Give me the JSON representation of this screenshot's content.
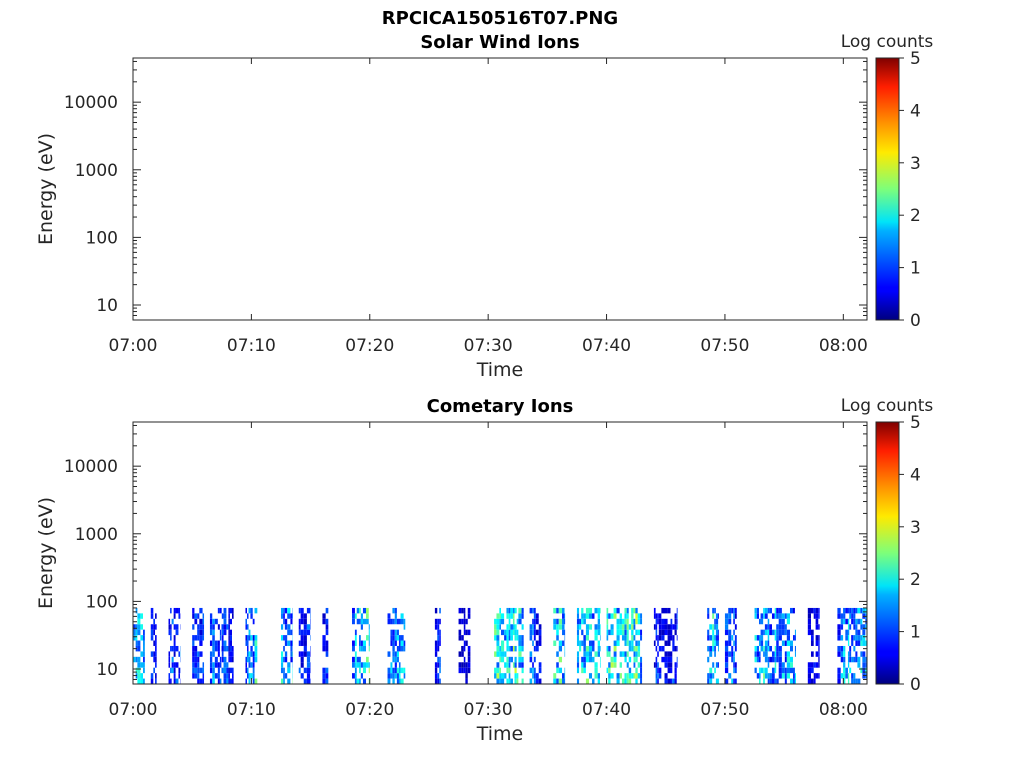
{
  "figure": {
    "main_title": "RPCICA150516T07.PNG"
  },
  "chart_data": [
    {
      "type": "heatmap",
      "title": "Solar Wind Ions",
      "xlabel": "Time",
      "ylabel": "Energy (eV)",
      "x_ticks": [
        "07:00",
        "07:10",
        "07:20",
        "07:30",
        "07:40",
        "07:50",
        "08:00"
      ],
      "x_range": [
        "07:00",
        "08:02"
      ],
      "y_scale": "log",
      "y_ticks": [
        10,
        100,
        1000,
        10000
      ],
      "y_range": [
        6,
        45000
      ],
      "colorbar": {
        "label": "Log counts",
        "range": [
          0,
          5
        ],
        "ticks": [
          0,
          1,
          2,
          3,
          4,
          5
        ],
        "colormap": "jet"
      },
      "grid": false,
      "cells": []
    },
    {
      "type": "heatmap",
      "title": "Cometary Ions",
      "xlabel": "Time",
      "ylabel": "Energy (eV)",
      "x_ticks": [
        "07:00",
        "07:10",
        "07:20",
        "07:30",
        "07:40",
        "07:50",
        "08:00"
      ],
      "x_range": [
        "07:00",
        "08:02"
      ],
      "y_scale": "log",
      "y_ticks": [
        10,
        100,
        1000,
        10000
      ],
      "y_range": [
        6,
        45000
      ],
      "colorbar": {
        "label": "Log counts",
        "range": [
          0,
          5
        ],
        "ticks": [
          0,
          1,
          2,
          3,
          4,
          5
        ],
        "colormap": "jet"
      },
      "grid": false,
      "energy_range_ev": [
        6,
        80
      ],
      "activity_bursts": [
        {
          "t_start": "07:00:00",
          "t_end": "07:01:00",
          "level": 2.0
        },
        {
          "t_start": "07:01:30",
          "t_end": "07:02:00",
          "level": 1.0
        },
        {
          "t_start": "07:03:00",
          "t_end": "07:04:00",
          "level": 1.2
        },
        {
          "t_start": "07:05:00",
          "t_end": "07:06:00",
          "level": 1.0
        },
        {
          "t_start": "07:06:30",
          "t_end": "07:07:30",
          "level": 1.3
        },
        {
          "t_start": "07:07:30",
          "t_end": "07:08:30",
          "level": 1.1
        },
        {
          "t_start": "07:09:30",
          "t_end": "07:10:30",
          "level": 1.8
        },
        {
          "t_start": "07:12:30",
          "t_end": "07:13:30",
          "level": 1.9
        },
        {
          "t_start": "07:14:00",
          "t_end": "07:15:00",
          "level": 1.2
        },
        {
          "t_start": "07:16:00",
          "t_end": "07:16:30",
          "level": 1.0
        },
        {
          "t_start": "07:18:30",
          "t_end": "07:20:00",
          "level": 2.3
        },
        {
          "t_start": "07:21:30",
          "t_end": "07:23:00",
          "level": 1.7
        },
        {
          "t_start": "07:25:30",
          "t_end": "07:26:00",
          "level": 0.9
        },
        {
          "t_start": "07:27:30",
          "t_end": "07:28:30",
          "level": 0.8
        },
        {
          "t_start": "07:30:30",
          "t_end": "07:33:00",
          "level": 2.2
        },
        {
          "t_start": "07:33:30",
          "t_end": "07:34:30",
          "level": 1.2
        },
        {
          "t_start": "07:35:30",
          "t_end": "07:36:30",
          "level": 2.0
        },
        {
          "t_start": "07:37:30",
          "t_end": "07:39:30",
          "level": 2.0
        },
        {
          "t_start": "07:40:00",
          "t_end": "07:43:00",
          "level": 2.4
        },
        {
          "t_start": "07:44:00",
          "t_end": "07:46:00",
          "level": 1.0
        },
        {
          "t_start": "07:48:30",
          "t_end": "07:49:30",
          "level": 2.0
        },
        {
          "t_start": "07:50:00",
          "t_end": "07:51:00",
          "level": 1.3
        },
        {
          "t_start": "07:52:30",
          "t_end": "07:56:00",
          "level": 1.8
        },
        {
          "t_start": "07:57:00",
          "t_end": "07:58:00",
          "level": 1.0
        },
        {
          "t_start": "07:59:30",
          "t_end": "08:00:30",
          "level": 1.6
        },
        {
          "t_start": "08:00:30",
          "t_end": "08:02:00",
          "level": 1.8
        }
      ]
    }
  ]
}
